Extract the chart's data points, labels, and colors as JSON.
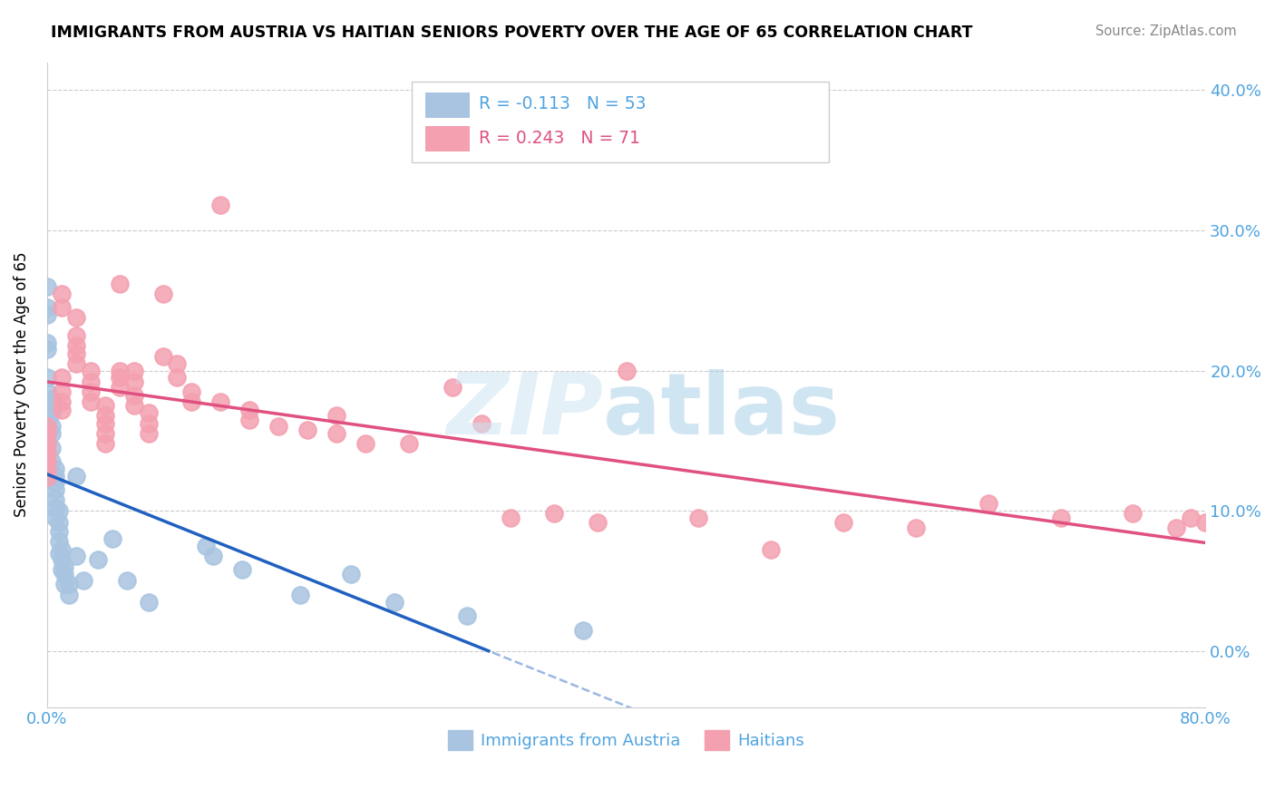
{
  "title": "IMMIGRANTS FROM AUSTRIA VS HAITIAN SENIORS POVERTY OVER THE AGE OF 65 CORRELATION CHART",
  "source": "Source: ZipAtlas.com",
  "ylabel": "Seniors Poverty Over the Age of 65",
  "xlim": [
    0.0,
    0.8
  ],
  "ylim": [
    -0.04,
    0.42
  ],
  "yticks": [
    0.0,
    0.1,
    0.2,
    0.3,
    0.4
  ],
  "ytick_labels": [
    "0.0%",
    "10.0%",
    "20.0%",
    "30.0%",
    "40.0%"
  ],
  "xticks": [
    0.0,
    0.2,
    0.4,
    0.6,
    0.8
  ],
  "xtick_labels": [
    "0.0%",
    "",
    "",
    "",
    "80.0%"
  ],
  "austria_color": "#a8c4e0",
  "haitian_color": "#f4a0b0",
  "austria_line_color": "#2060c0",
  "haitian_line_color": "#e05080",
  "tick_color": "#4fa3e0",
  "austria_x": [
    0.0,
    0.0,
    0.0,
    0.0,
    0.0,
    0.0,
    0.0,
    0.0,
    0.0,
    0.0,
    0.003,
    0.003,
    0.003,
    0.003,
    0.003,
    0.003,
    0.003,
    0.003,
    0.006,
    0.006,
    0.006,
    0.006,
    0.006,
    0.006,
    0.006,
    0.008,
    0.008,
    0.008,
    0.008,
    0.008,
    0.01,
    0.01,
    0.01,
    0.012,
    0.012,
    0.012,
    0.015,
    0.015,
    0.02,
    0.02,
    0.025,
    0.035,
    0.045,
    0.055,
    0.07,
    0.11,
    0.115,
    0.135,
    0.175,
    0.21,
    0.24,
    0.29,
    0.37
  ],
  "austria_y": [
    0.26,
    0.245,
    0.24,
    0.22,
    0.215,
    0.195,
    0.185,
    0.175,
    0.165,
    0.155,
    0.18,
    0.175,
    0.17,
    0.16,
    0.155,
    0.145,
    0.135,
    0.125,
    0.13,
    0.125,
    0.12,
    0.115,
    0.108,
    0.102,
    0.095,
    0.1,
    0.092,
    0.085,
    0.078,
    0.07,
    0.072,
    0.065,
    0.058,
    0.06,
    0.055,
    0.048,
    0.048,
    0.04,
    0.125,
    0.068,
    0.05,
    0.065,
    0.08,
    0.05,
    0.035,
    0.075,
    0.068,
    0.058,
    0.04,
    0.055,
    0.035,
    0.025,
    0.015
  ],
  "haitian_x": [
    0.0,
    0.0,
    0.0,
    0.0,
    0.0,
    0.0,
    0.0,
    0.01,
    0.01,
    0.01,
    0.01,
    0.01,
    0.01,
    0.02,
    0.02,
    0.02,
    0.02,
    0.02,
    0.03,
    0.03,
    0.03,
    0.03,
    0.04,
    0.04,
    0.04,
    0.04,
    0.04,
    0.05,
    0.05,
    0.05,
    0.05,
    0.06,
    0.06,
    0.06,
    0.06,
    0.07,
    0.07,
    0.07,
    0.08,
    0.08,
    0.09,
    0.09,
    0.1,
    0.1,
    0.12,
    0.12,
    0.14,
    0.14,
    0.16,
    0.18,
    0.2,
    0.2,
    0.22,
    0.25,
    0.28,
    0.3,
    0.32,
    0.35,
    0.38,
    0.4,
    0.45,
    0.5,
    0.55,
    0.6,
    0.65,
    0.7,
    0.75,
    0.78,
    0.79,
    0.8
  ],
  "haitian_y": [
    0.16,
    0.155,
    0.148,
    0.142,
    0.136,
    0.13,
    0.124,
    0.255,
    0.245,
    0.195,
    0.185,
    0.178,
    0.172,
    0.238,
    0.225,
    0.218,
    0.212,
    0.205,
    0.2,
    0.192,
    0.185,
    0.178,
    0.175,
    0.168,
    0.162,
    0.155,
    0.148,
    0.262,
    0.2,
    0.195,
    0.188,
    0.2,
    0.192,
    0.182,
    0.175,
    0.17,
    0.162,
    0.155,
    0.255,
    0.21,
    0.205,
    0.195,
    0.185,
    0.178,
    0.318,
    0.178,
    0.172,
    0.165,
    0.16,
    0.158,
    0.168,
    0.155,
    0.148,
    0.148,
    0.188,
    0.162,
    0.095,
    0.098,
    0.092,
    0.2,
    0.095,
    0.072,
    0.092,
    0.088,
    0.105,
    0.095,
    0.098,
    0.088,
    0.095,
    0.092
  ]
}
